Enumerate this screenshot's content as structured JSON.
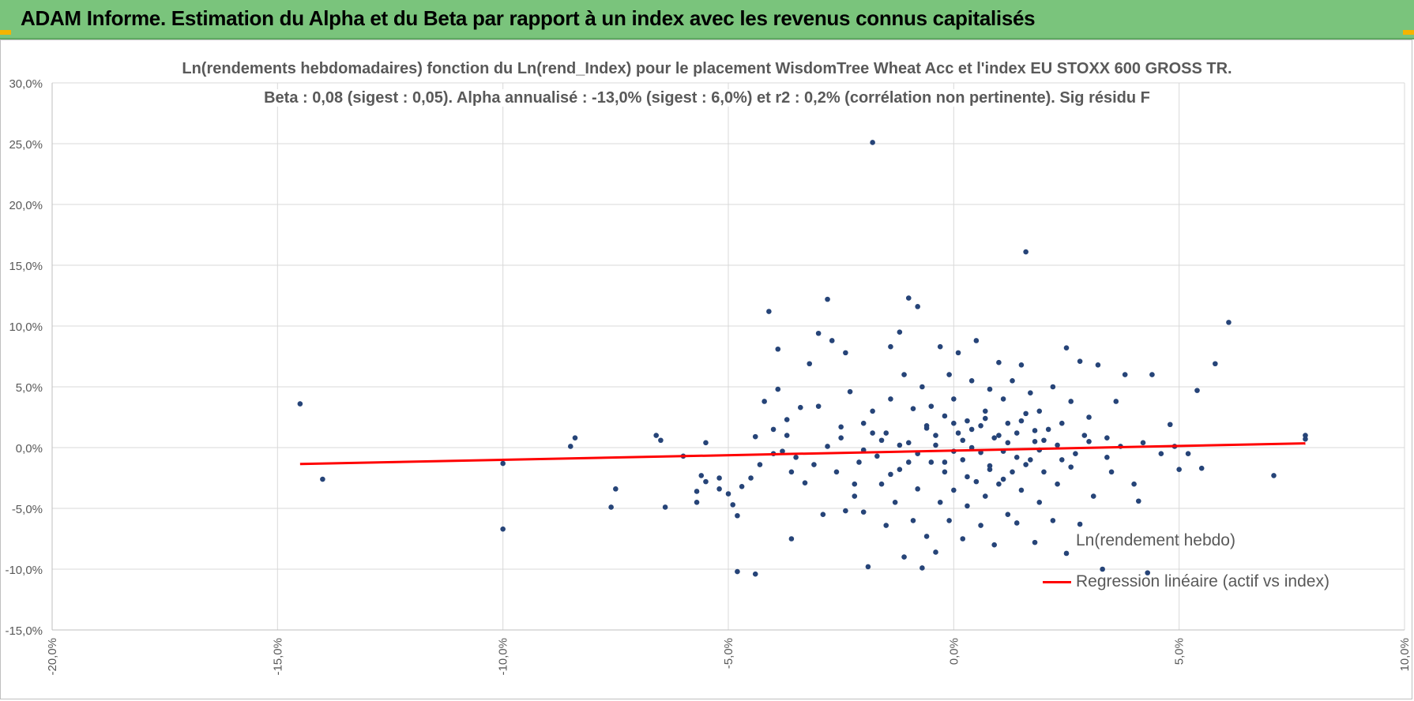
{
  "banner": {
    "title": "ADAM Informe. Estimation du Alpha et du Beta par rapport à un index avec les revenus connus capitalisés",
    "background_color": "#7ac47c"
  },
  "chart_data": {
    "type": "scatter",
    "title_line1": "Ln(rendements hebdomadaires) fonction du Ln(rend_Index) pour le placement WisdomTree Wheat Acc et l'index EU STOXX 600 GROSS TR.",
    "title_line2": "Beta : 0,08 (sigest : 0,05).  Alpha annualisé : -13,0% (sigest : 6,0%) et r2 : 0,2% (corrélation non pertinente). Sig résidu F",
    "xlabel": "",
    "ylabel": "",
    "xlim": [
      -0.2,
      0.1
    ],
    "ylim": [
      -0.15,
      0.3
    ],
    "x_ticks": [
      -0.2,
      -0.15,
      -0.1,
      -0.05,
      0.0,
      0.05,
      0.1
    ],
    "x_tick_labels": [
      "-20,0%",
      "-15,0%",
      "-10,0%",
      "-5,0%",
      "0,0%",
      "5,0%",
      "10,0%"
    ],
    "y_ticks": [
      -0.15,
      -0.1,
      -0.05,
      0.0,
      0.05,
      0.1,
      0.15,
      0.2,
      0.25,
      0.3
    ],
    "y_tick_labels": [
      "-15,0%",
      "-10,0%",
      "-5,0%",
      "0,0%",
      "5,0%",
      "10,0%",
      "15,0%",
      "20,0%",
      "25,0%",
      "30,0%"
    ],
    "grid": true,
    "legend_position": "bottom-right",
    "series": [
      {
        "name": "Ln(rendement hebdo)",
        "kind": "points",
        "color": "#264478",
        "points": [
          [
            -0.145,
            0.036
          ],
          [
            -0.14,
            -0.026
          ],
          [
            -0.1,
            -0.013
          ],
          [
            -0.1,
            -0.067
          ],
          [
            -0.085,
            0.001
          ],
          [
            -0.084,
            0.008
          ],
          [
            -0.076,
            -0.049
          ],
          [
            -0.075,
            -0.034
          ],
          [
            -0.066,
            0.01
          ],
          [
            -0.065,
            0.006
          ],
          [
            -0.064,
            -0.049
          ],
          [
            -0.06,
            -0.007
          ],
          [
            -0.057,
            -0.036
          ],
          [
            -0.056,
            -0.023
          ],
          [
            -0.055,
            -0.028
          ],
          [
            -0.057,
            -0.045
          ],
          [
            -0.055,
            0.004
          ],
          [
            -0.052,
            -0.025
          ],
          [
            -0.052,
            -0.034
          ],
          [
            -0.05,
            -0.038
          ],
          [
            -0.049,
            -0.047
          ],
          [
            -0.048,
            -0.056
          ],
          [
            -0.048,
            -0.102
          ],
          [
            -0.045,
            -0.025
          ],
          [
            -0.044,
            -0.104
          ],
          [
            -0.044,
            0.009
          ],
          [
            -0.047,
            -0.032
          ],
          [
            -0.043,
            -0.014
          ],
          [
            -0.042,
            0.038
          ],
          [
            -0.041,
            0.112
          ],
          [
            -0.04,
            -0.005
          ],
          [
            -0.04,
            0.015
          ],
          [
            -0.039,
            0.048
          ],
          [
            -0.039,
            0.081
          ],
          [
            -0.038,
            -0.003
          ],
          [
            -0.037,
            0.023
          ],
          [
            -0.037,
            0.01
          ],
          [
            -0.036,
            -0.02
          ],
          [
            -0.036,
            -0.075
          ],
          [
            -0.035,
            -0.008
          ],
          [
            -0.034,
            0.033
          ],
          [
            -0.033,
            -0.029
          ],
          [
            -0.032,
            0.069
          ],
          [
            -0.031,
            -0.014
          ],
          [
            -0.03,
            0.094
          ],
          [
            -0.03,
            0.034
          ],
          [
            -0.029,
            -0.055
          ],
          [
            -0.028,
            0.122
          ],
          [
            -0.028,
            0.001
          ],
          [
            -0.027,
            0.088
          ],
          [
            -0.026,
            -0.02
          ],
          [
            -0.025,
            0.017
          ],
          [
            -0.024,
            0.078
          ],
          [
            -0.024,
            -0.052
          ],
          [
            -0.023,
            0.046
          ],
          [
            -0.022,
            -0.04
          ],
          [
            -0.021,
            -0.012
          ],
          [
            -0.02,
            -0.053
          ],
          [
            -0.02,
            0.02
          ],
          [
            -0.019,
            -0.098
          ],
          [
            -0.018,
            0.251
          ],
          [
            -0.018,
            0.03
          ],
          [
            -0.017,
            -0.007
          ],
          [
            -0.016,
            -0.03
          ],
          [
            -0.015,
            0.012
          ],
          [
            -0.015,
            -0.064
          ],
          [
            -0.014,
            0.083
          ],
          [
            -0.014,
            0.04
          ],
          [
            -0.013,
            -0.045
          ],
          [
            -0.012,
            0.095
          ],
          [
            -0.012,
            -0.018
          ],
          [
            -0.011,
            0.06
          ],
          [
            -0.011,
            -0.09
          ],
          [
            -0.01,
            0.123
          ],
          [
            -0.01,
            0.004
          ],
          [
            -0.009,
            0.032
          ],
          [
            -0.009,
            -0.06
          ],
          [
            -0.008,
            0.116
          ],
          [
            -0.008,
            -0.034
          ],
          [
            -0.007,
            -0.099
          ],
          [
            -0.007,
            0.05
          ],
          [
            -0.006,
            0.018
          ],
          [
            -0.006,
            -0.073
          ],
          [
            -0.005,
            -0.012
          ],
          [
            -0.005,
            0.034
          ],
          [
            -0.004,
            -0.086
          ],
          [
            -0.004,
            0.002
          ],
          [
            -0.003,
            0.083
          ],
          [
            -0.003,
            -0.045
          ],
          [
            -0.002,
            0.026
          ],
          [
            -0.002,
            -0.02
          ],
          [
            -0.001,
            0.06
          ],
          [
            -0.001,
            -0.06
          ],
          [
            0.0,
            -0.003
          ],
          [
            0.0,
            0.04
          ],
          [
            0.0,
            -0.035
          ],
          [
            0.001,
            0.078
          ],
          [
            0.001,
            0.012
          ],
          [
            0.002,
            -0.075
          ],
          [
            0.002,
            -0.01
          ],
          [
            0.003,
            0.022
          ],
          [
            0.003,
            -0.048
          ],
          [
            0.004,
            0.055
          ],
          [
            0.004,
            0.0
          ],
          [
            0.005,
            -0.028
          ],
          [
            0.005,
            0.088
          ],
          [
            0.006,
            -0.064
          ],
          [
            0.006,
            0.018
          ],
          [
            0.007,
            0.03
          ],
          [
            0.007,
            -0.04
          ],
          [
            0.008,
            -0.015
          ],
          [
            0.008,
            0.048
          ],
          [
            0.009,
            -0.08
          ],
          [
            0.009,
            0.008
          ],
          [
            0.01,
            0.07
          ],
          [
            0.01,
            -0.03
          ],
          [
            0.011,
            0.04
          ],
          [
            0.011,
            -0.003
          ],
          [
            0.012,
            -0.055
          ],
          [
            0.012,
            0.02
          ],
          [
            0.013,
            0.055
          ],
          [
            0.013,
            -0.02
          ],
          [
            0.014,
            -0.062
          ],
          [
            0.014,
            0.012
          ],
          [
            0.015,
            0.068
          ],
          [
            0.015,
            -0.035
          ],
          [
            0.016,
            0.161
          ],
          [
            0.016,
            0.028
          ],
          [
            0.017,
            -0.01
          ],
          [
            0.017,
            0.045
          ],
          [
            0.018,
            -0.078
          ],
          [
            0.018,
            0.005
          ],
          [
            0.019,
            0.03
          ],
          [
            0.019,
            -0.045
          ],
          [
            0.02,
            -0.02
          ],
          [
            0.021,
            0.015
          ],
          [
            0.022,
            -0.06
          ],
          [
            0.022,
            0.05
          ],
          [
            0.023,
            -0.03
          ],
          [
            0.024,
            0.02
          ],
          [
            0.024,
            -0.01
          ],
          [
            0.025,
            0.082
          ],
          [
            0.025,
            -0.087
          ],
          [
            0.026,
            0.038
          ],
          [
            0.027,
            -0.005
          ],
          [
            0.028,
            0.071
          ],
          [
            0.028,
            -0.063
          ],
          [
            0.029,
            0.01
          ],
          [
            0.03,
            0.025
          ],
          [
            0.031,
            -0.04
          ],
          [
            0.032,
            0.068
          ],
          [
            0.033,
            -0.1
          ],
          [
            0.034,
            0.008
          ],
          [
            0.035,
            -0.02
          ],
          [
            0.036,
            0.038
          ],
          [
            0.037,
            0.001
          ],
          [
            0.038,
            0.06
          ],
          [
            0.04,
            -0.03
          ],
          [
            0.041,
            -0.044
          ],
          [
            0.042,
            0.004
          ],
          [
            0.043,
            -0.103
          ],
          [
            0.044,
            0.06
          ],
          [
            0.046,
            -0.005
          ],
          [
            0.048,
            0.019
          ],
          [
            0.049,
            0.001
          ],
          [
            0.05,
            -0.018
          ],
          [
            0.052,
            -0.005
          ],
          [
            0.054,
            0.047
          ],
          [
            0.055,
            -0.017
          ],
          [
            0.058,
            0.069
          ],
          [
            0.061,
            0.103
          ],
          [
            0.071,
            -0.023
          ],
          [
            0.078,
            0.01
          ],
          [
            0.078,
            0.007
          ],
          [
            -0.012,
            0.002
          ],
          [
            -0.008,
            -0.005
          ],
          [
            -0.004,
            0.01
          ],
          [
            0.002,
            0.006
          ],
          [
            0.006,
            -0.004
          ],
          [
            0.01,
            0.01
          ],
          [
            0.014,
            -0.008
          ],
          [
            0.018,
            0.014
          ],
          [
            -0.016,
            0.006
          ],
          [
            -0.002,
            -0.012
          ],
          [
            0.004,
            0.015
          ],
          [
            0.008,
            -0.018
          ],
          [
            0.012,
            0.004
          ],
          [
            0.016,
            -0.014
          ],
          [
            0.02,
            0.006
          ],
          [
            -0.006,
            0.016
          ],
          [
            -0.01,
            -0.012
          ],
          [
            0.0,
            0.02
          ],
          [
            0.003,
            -0.024
          ],
          [
            0.007,
            0.024
          ],
          [
            0.011,
            -0.026
          ],
          [
            0.015,
            0.022
          ],
          [
            0.019,
            -0.002
          ],
          [
            0.023,
            0.002
          ],
          [
            -0.014,
            -0.022
          ],
          [
            -0.018,
            0.012
          ],
          [
            -0.02,
            -0.002
          ],
          [
            0.026,
            -0.016
          ],
          [
            0.03,
            0.005
          ],
          [
            0.034,
            -0.008
          ],
          [
            -0.025,
            0.008
          ],
          [
            -0.022,
            -0.03
          ]
        ]
      },
      {
        "name": "Regression linéaire (actif vs index)",
        "kind": "line",
        "color": "#ff0000",
        "points": [
          [
            -0.145,
            -0.0135
          ],
          [
            0.078,
            0.0035
          ]
        ]
      }
    ]
  }
}
